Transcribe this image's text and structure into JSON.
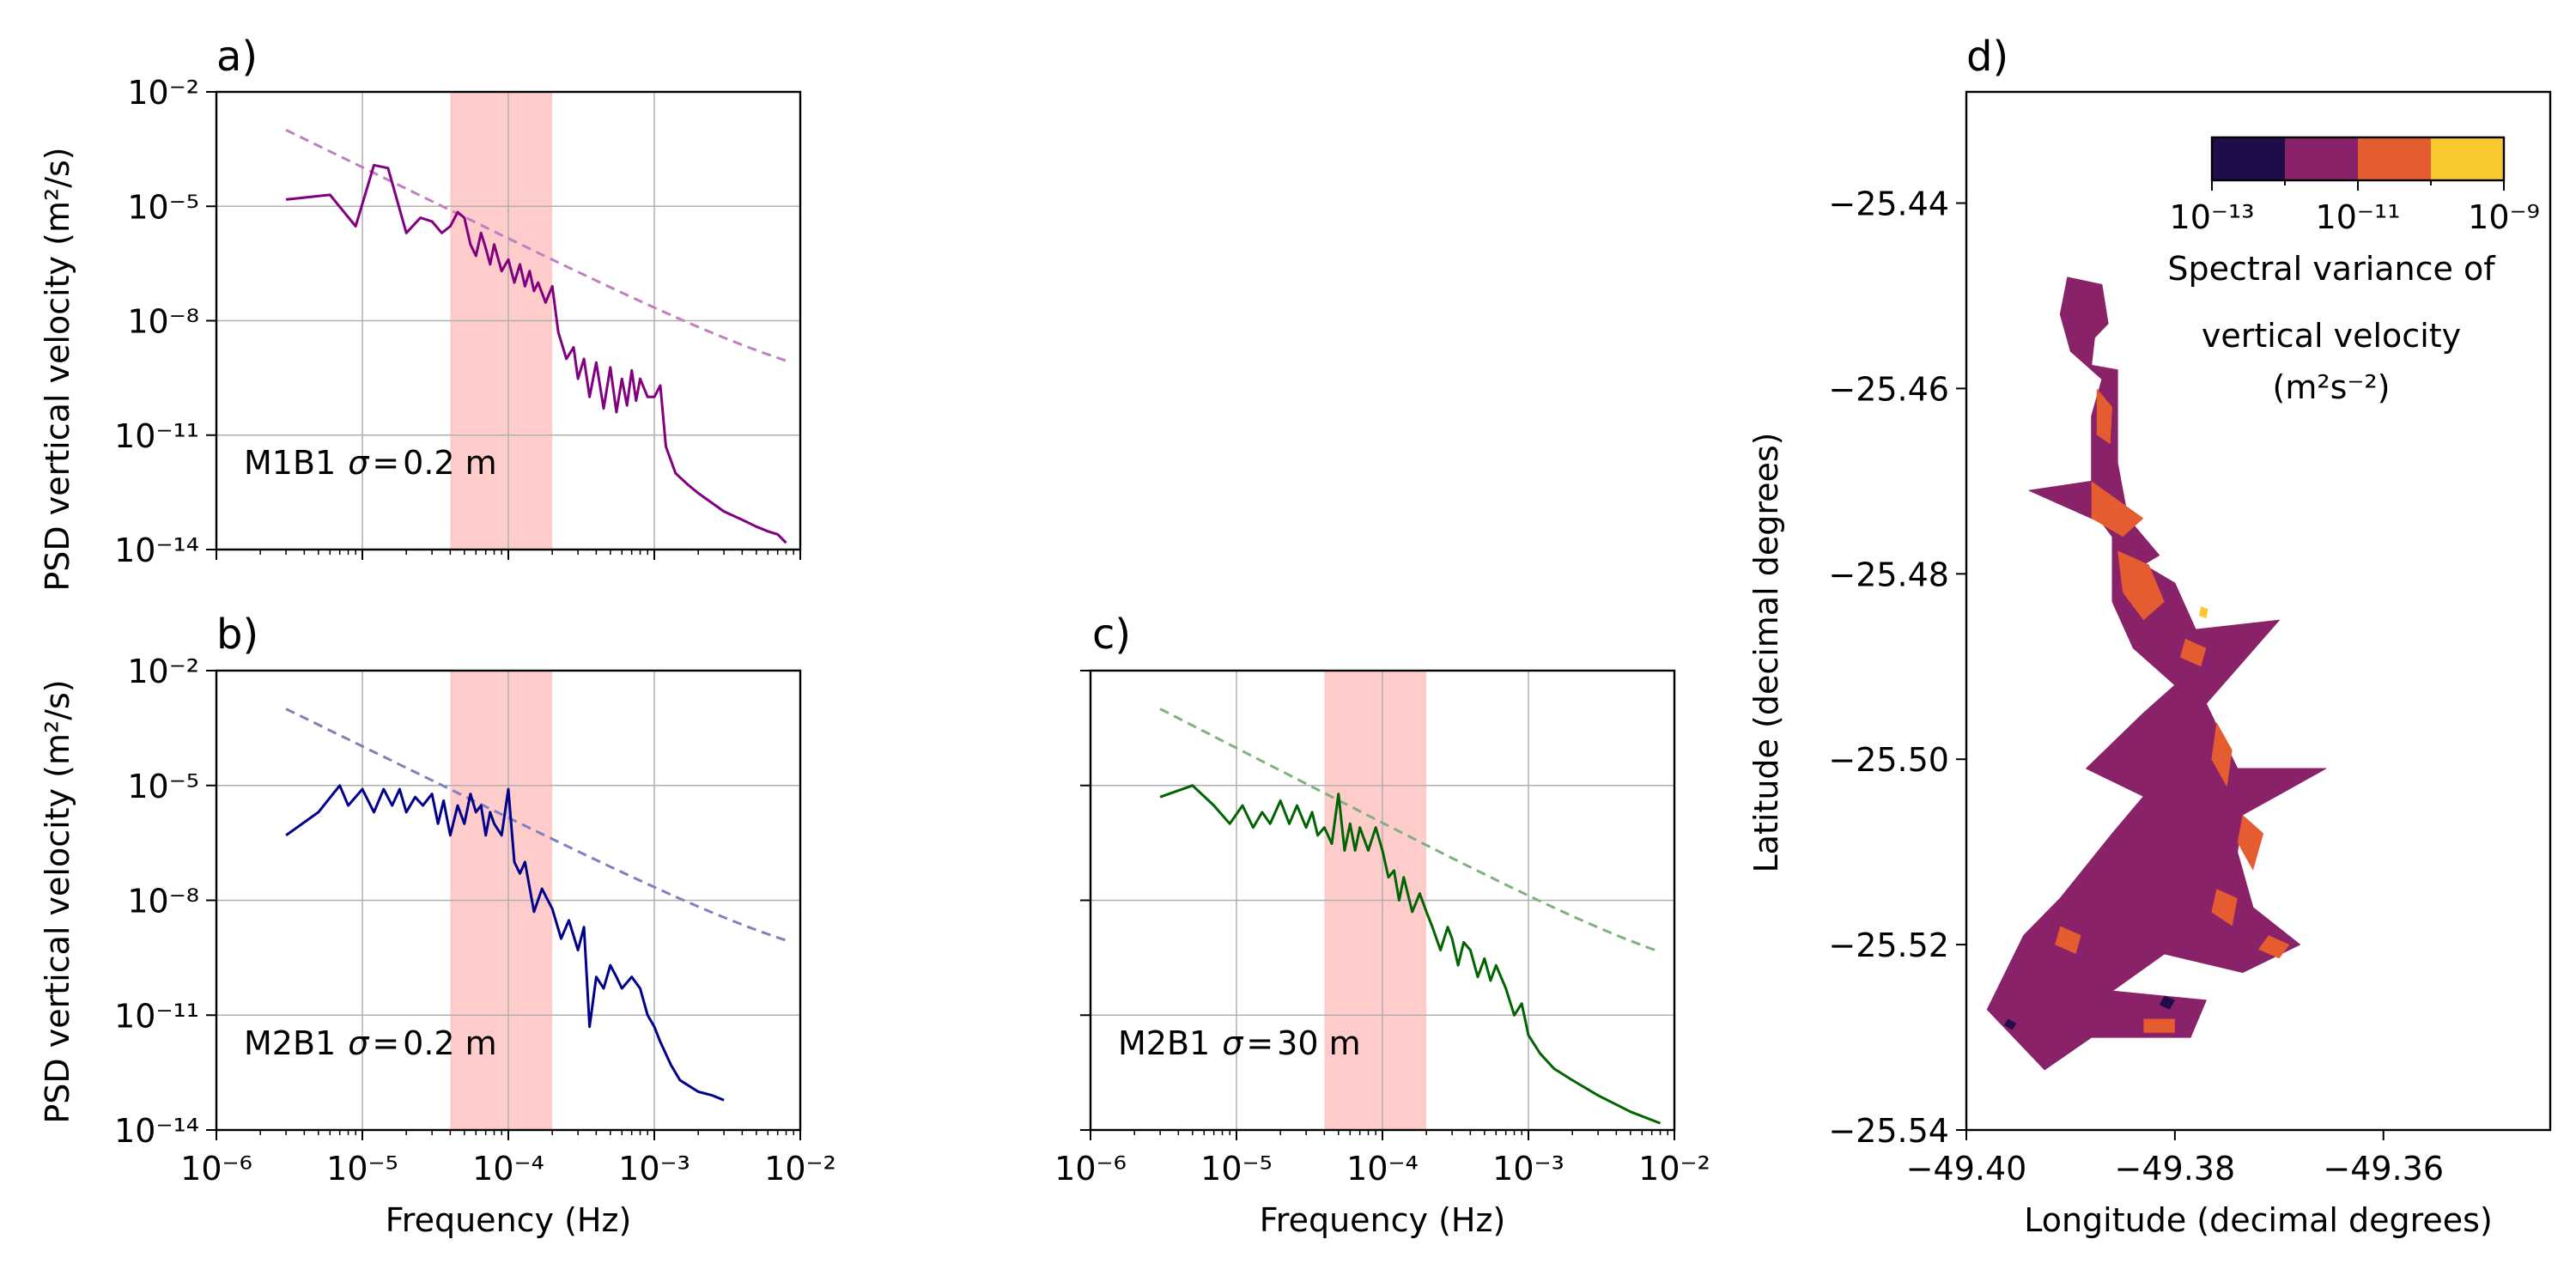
{
  "chart_data": [
    {
      "id": "a",
      "type": "line",
      "panel_label": "a)",
      "annotation_name": "M1B1",
      "annotation_sigma": "0.2 m",
      "xscale": "log",
      "yscale": "log",
      "xlim": [
        1e-06,
        0.01
      ],
      "ylim": [
        1e-14,
        0.01
      ],
      "xlabel": "",
      "ylabel": "PSD vertical velocity (m²/s)",
      "xtick_labels_shown": false,
      "ytick_labels_shown": true,
      "grid": true,
      "shaded_band": [
        4e-05,
        0.0002
      ],
      "shaded_color": "#ffcccc",
      "series_color": "#800080",
      "series": {
        "x": [
          3e-06,
          6e-06,
          9e-06,
          1.2e-05,
          1.5e-05,
          2e-05,
          2.5e-05,
          3e-05,
          3.5e-05,
          4e-05,
          4.5e-05,
          5e-05,
          5.5e-05,
          6e-05,
          6.5e-05,
          7e-05,
          7.5e-05,
          8e-05,
          9e-05,
          0.0001,
          0.00011,
          0.00012,
          0.00013,
          0.00014,
          0.00015,
          0.00016,
          0.00018,
          0.0002,
          0.00022,
          0.00025,
          0.00028,
          0.0003,
          0.00033,
          0.00036,
          0.0004,
          0.00045,
          0.0005,
          0.00055,
          0.0006,
          0.00065,
          0.0007,
          0.00075,
          0.0008,
          0.0009,
          0.001,
          0.0011,
          0.0012,
          0.0014,
          0.0017,
          0.002,
          0.003,
          0.004,
          0.005,
          0.006,
          0.007,
          0.008
        ],
        "y": [
          1.5e-05,
          2e-05,
          3e-06,
          0.00012,
          0.0001,
          2e-06,
          5e-06,
          4e-06,
          2e-06,
          3e-06,
          7e-06,
          5e-06,
          1e-06,
          5e-07,
          2e-06,
          8e-07,
          3e-07,
          1e-06,
          2e-07,
          4e-07,
          1e-07,
          3e-07,
          8e-08,
          2e-07,
          6e-08,
          1e-07,
          3e-08,
          8e-08,
          5e-09,
          1e-09,
          2e-09,
          3e-10,
          1e-09,
          1e-10,
          8e-10,
          5e-11,
          6e-10,
          4e-11,
          3e-10,
          6e-11,
          5e-10,
          8e-11,
          3e-10,
          1e-10,
          1e-10,
          2e-10,
          5e-12,
          1e-12,
          5e-13,
          3e-13,
          1e-13,
          6e-14,
          4e-14,
          3e-14,
          2.5e-14,
          1.5e-14
        ]
      },
      "reference_line": {
        "x_start": 3e-06,
        "x_end": 0.008,
        "y_start": 0.001,
        "y_end": 4e-10,
        "color": "#c080c0"
      }
    },
    {
      "id": "b",
      "type": "line",
      "panel_label": "b)",
      "annotation_name": "M2B1",
      "annotation_sigma": "0.2 m",
      "xscale": "log",
      "yscale": "log",
      "xlim": [
        1e-06,
        0.01
      ],
      "ylim": [
        1e-14,
        0.01
      ],
      "xlabel": "Frequency (Hz)",
      "ylabel": "PSD vertical velocity (m²/s)",
      "xtick_labels_shown": true,
      "ytick_labels_shown": true,
      "grid": true,
      "shaded_band": [
        4e-05,
        0.0002
      ],
      "shaded_color": "#ffcccc",
      "series_color": "#00008b",
      "series": {
        "x": [
          3e-06,
          5e-06,
          7e-06,
          8e-06,
          1e-05,
          1.2e-05,
          1.4e-05,
          1.6e-05,
          1.8e-05,
          2e-05,
          2.3e-05,
          2.6e-05,
          3e-05,
          3.3e-05,
          3.6e-05,
          4e-05,
          4.5e-05,
          5e-05,
          5.5e-05,
          6e-05,
          6.5e-05,
          7e-05,
          7.5e-05,
          8e-05,
          9e-05,
          0.0001,
          0.00011,
          0.00012,
          0.00013,
          0.00015,
          0.00017,
          0.0002,
          0.00023,
          0.00026,
          0.0003,
          0.00033,
          0.00036,
          0.0004,
          0.00045,
          0.0005,
          0.00055,
          0.0006,
          0.0007,
          0.0008,
          0.0009,
          0.001,
          0.0011,
          0.0013,
          0.0015,
          0.002,
          0.0025,
          0.003
        ],
        "y": [
          5e-07,
          2e-06,
          1e-05,
          3e-06,
          8e-06,
          2e-06,
          8e-06,
          3e-06,
          8e-06,
          2e-06,
          5e-06,
          3e-06,
          6e-06,
          1e-06,
          4e-06,
          5e-07,
          3e-06,
          1e-06,
          6e-06,
          2e-06,
          3e-06,
          5e-07,
          2e-06,
          1e-06,
          5e-07,
          8e-06,
          1e-07,
          5e-08,
          1e-07,
          5e-09,
          2e-08,
          6e-09,
          1e-09,
          3e-09,
          5e-10,
          2e-09,
          5e-12,
          1e-10,
          5e-11,
          2e-10,
          1e-10,
          5e-11,
          1e-10,
          5e-11,
          1e-11,
          5e-12,
          2e-12,
          5e-13,
          2e-13,
          1e-13,
          8e-14,
          6e-14
        ]
      },
      "reference_line": {
        "x_start": 3e-06,
        "x_end": 0.008,
        "y_start": 0.001,
        "y_end": 4e-10,
        "color": "#8080c0"
      }
    },
    {
      "id": "c",
      "type": "line",
      "panel_label": "c)",
      "annotation_name": "M2B1",
      "annotation_sigma": "30 m",
      "xscale": "log",
      "yscale": "log",
      "xlim": [
        1e-06,
        0.01
      ],
      "ylim": [
        1e-14,
        0.01
      ],
      "xlabel": "Frequency (Hz)",
      "ylabel": "",
      "xtick_labels_shown": true,
      "ytick_labels_shown": false,
      "grid": true,
      "shaded_band": [
        4e-05,
        0.0002
      ],
      "shaded_color": "#ffcccc",
      "series_color": "#006400",
      "series": {
        "x": [
          3e-06,
          5e-06,
          7e-06,
          9e-06,
          1.1e-05,
          1.3e-05,
          1.5e-05,
          1.7e-05,
          2e-05,
          2.3e-05,
          2.6e-05,
          3e-05,
          3.3e-05,
          3.6e-05,
          4e-05,
          4.5e-05,
          5e-05,
          5.5e-05,
          6e-05,
          6.5e-05,
          7e-05,
          8e-05,
          9e-05,
          0.0001,
          0.00011,
          0.00012,
          0.00013,
          0.00014,
          0.00016,
          0.00018,
          0.0002,
          0.00022,
          0.00025,
          0.00028,
          0.0003,
          0.00033,
          0.00036,
          0.0004,
          0.00045,
          0.0005,
          0.00055,
          0.0006,
          0.0007,
          0.0008,
          0.0009,
          0.001,
          0.0012,
          0.0015,
          0.002,
          0.003,
          0.005,
          0.008
        ],
        "y": [
          5e-06,
          1e-05,
          3e-06,
          1e-06,
          3e-06,
          8e-07,
          2e-06,
          1e-06,
          4e-06,
          1e-06,
          3e-06,
          8e-07,
          2e-06,
          5e-07,
          8e-07,
          3e-07,
          6e-06,
          2e-07,
          1e-06,
          2e-07,
          8e-07,
          2e-07,
          8e-07,
          2e-07,
          4e-08,
          6e-08,
          1e-08,
          4e-08,
          5e-09,
          1.5e-08,
          5e-09,
          2e-09,
          5e-10,
          2e-09,
          1e-09,
          2e-10,
          8e-10,
          5e-10,
          1e-10,
          3e-10,
          8e-11,
          2e-10,
          5e-11,
          1e-11,
          2e-11,
          3e-12,
          1e-12,
          4e-13,
          2e-13,
          8e-14,
          3e-14,
          1.5e-14
        ]
      },
      "reference_line": {
        "x_start": 3e-06,
        "x_end": 0.008,
        "y_start": 0.001,
        "y_end": 2e-10,
        "color": "#80b080"
      }
    },
    {
      "id": "d",
      "type": "heatmap",
      "panel_label": "d)",
      "xlabel": "Longitude (decimal degrees)",
      "ylabel": "Latitude (decimal degrees)",
      "xlim": [
        -49.4,
        -49.344
      ],
      "ylim": [
        -25.54,
        -25.428
      ],
      "x_ticks": [
        -49.4,
        -49.38,
        -49.36
      ],
      "x_tick_labels": [
        "−49.40",
        "−49.38",
        "−49.36"
      ],
      "y_ticks": [
        -25.44,
        -25.46,
        -25.48,
        -25.5,
        -25.52,
        -25.54
      ],
      "y_tick_labels": [
        "−25.44",
        "−25.46",
        "−25.48",
        "−25.50",
        "−25.52",
        "−25.54"
      ],
      "colorbar": {
        "label_line1": "Spectral variance of",
        "label_line2": "vertical velocity",
        "label_line3": "(m²s⁻²)",
        "tick_labels": [
          "10⁻¹³",
          "10⁻¹¹",
          "10⁻⁹"
        ],
        "bins_exponent": [
          -13,
          -12,
          -11,
          -10,
          -9
        ],
        "colors": [
          "#1f0c48",
          "#892269",
          "#e55c30",
          "#fac932"
        ],
        "placement": "top-right"
      },
      "outline": [
        [
          -49.3903,
          -25.448
        ],
        [
          -49.387,
          -25.4488
        ],
        [
          -49.3864,
          -25.453
        ],
        [
          -49.3877,
          -25.4545
        ],
        [
          -49.388,
          -25.4575
        ],
        [
          -49.3855,
          -25.458
        ],
        [
          -49.3855,
          -25.468
        ],
        [
          -49.3845,
          -25.474
        ],
        [
          -49.3815,
          -25.478
        ],
        [
          -49.383,
          -25.479
        ],
        [
          -49.38,
          -25.481
        ],
        [
          -49.378,
          -25.486
        ],
        [
          -49.37,
          -25.485
        ],
        [
          -49.377,
          -25.494
        ],
        [
          -49.374,
          -25.501
        ],
        [
          -49.3655,
          -25.501
        ],
        [
          -49.3735,
          -25.506
        ],
        [
          -49.374,
          -25.51
        ],
        [
          -49.3725,
          -25.516
        ],
        [
          -49.368,
          -25.52
        ],
        [
          -49.3735,
          -25.523
        ],
        [
          -49.381,
          -25.521
        ],
        [
          -49.386,
          -25.525
        ],
        [
          -49.377,
          -25.526
        ],
        [
          -49.3785,
          -25.53
        ],
        [
          -49.388,
          -25.53
        ],
        [
          -49.3925,
          -25.5335
        ],
        [
          -49.398,
          -25.527
        ],
        [
          -49.3945,
          -25.519
        ],
        [
          -49.391,
          -25.515
        ],
        [
          -49.386,
          -25.508
        ],
        [
          -49.383,
          -25.504
        ],
        [
          -49.3885,
          -25.501
        ],
        [
          -49.383,
          -25.495
        ],
        [
          -49.38,
          -25.492
        ],
        [
          -49.384,
          -25.488
        ],
        [
          -49.386,
          -25.483
        ],
        [
          -49.386,
          -25.476
        ],
        [
          -49.387,
          -25.4745
        ],
        [
          -49.394,
          -25.471
        ],
        [
          -49.388,
          -25.47
        ],
        [
          -49.388,
          -25.463
        ],
        [
          -49.387,
          -25.459
        ],
        [
          -49.39,
          -25.456
        ],
        [
          -49.391,
          -25.452
        ]
      ],
      "patches": [
        {
          "level": 2,
          "pts": [
            [
              -49.3875,
              -25.46
            ],
            [
              -49.386,
              -25.462
            ],
            [
              -49.3862,
              -25.466
            ],
            [
              -49.3875,
              -25.465
            ]
          ]
        },
        {
          "level": 2,
          "pts": [
            [
              -49.388,
              -25.47
            ],
            [
              -49.3855,
              -25.472
            ],
            [
              -49.383,
              -25.474
            ],
            [
              -49.385,
              -25.476
            ],
            [
              -49.388,
              -25.474
            ]
          ]
        },
        {
          "level": 2,
          "pts": [
            [
              -49.3855,
              -25.4775
            ],
            [
              -49.3825,
              -25.479
            ],
            [
              -49.381,
              -25.483
            ],
            [
              -49.383,
              -25.485
            ],
            [
              -49.385,
              -25.482
            ]
          ]
        },
        {
          "level": 2,
          "pts": [
            [
              -49.379,
              -25.487
            ],
            [
              -49.377,
              -25.488
            ],
            [
              -49.3775,
              -25.49
            ],
            [
              -49.3795,
              -25.489
            ]
          ]
        },
        {
          "level": 2,
          "pts": [
            [
              -49.376,
              -25.496
            ],
            [
              -49.3745,
              -25.499
            ],
            [
              -49.375,
              -25.503
            ],
            [
              -49.3765,
              -25.5
            ]
          ]
        },
        {
          "level": 2,
          "pts": [
            [
              -49.3735,
              -25.506
            ],
            [
              -49.3715,
              -25.508
            ],
            [
              -49.3725,
              -25.512
            ],
            [
              -49.374,
              -25.509
            ]
          ]
        },
        {
          "level": 2,
          "pts": [
            [
              -49.376,
              -25.514
            ],
            [
              -49.374,
              -25.515
            ],
            [
              -49.3745,
              -25.518
            ],
            [
              -49.3765,
              -25.5165
            ]
          ]
        },
        {
          "level": 2,
          "pts": [
            [
              -49.371,
              -25.519
            ],
            [
              -49.369,
              -25.52
            ],
            [
              -49.37,
              -25.5215
            ],
            [
              -49.372,
              -25.5205
            ]
          ]
        },
        {
          "level": 2,
          "pts": [
            [
              -49.391,
              -25.518
            ],
            [
              -49.389,
              -25.519
            ],
            [
              -49.3895,
              -25.521
            ],
            [
              -49.3915,
              -25.52
            ]
          ]
        },
        {
          "level": 2,
          "pts": [
            [
              -49.383,
              -25.528
            ],
            [
              -49.38,
              -25.528
            ],
            [
              -49.38,
              -25.5295
            ],
            [
              -49.383,
              -25.5295
            ]
          ]
        },
        {
          "level": 0,
          "pts": [
            [
              -49.381,
              -25.5255
            ],
            [
              -49.38,
              -25.526
            ],
            [
              -49.3805,
              -25.527
            ],
            [
              -49.3815,
              -25.5265
            ]
          ]
        },
        {
          "level": 0,
          "pts": [
            [
              -49.396,
              -25.528
            ],
            [
              -49.3952,
              -25.5285
            ],
            [
              -49.3956,
              -25.5292
            ],
            [
              -49.3964,
              -25.5287
            ]
          ]
        },
        {
          "level": 3,
          "pts": [
            [
              -49.3775,
              -25.4835
            ],
            [
              -49.3768,
              -25.4838
            ],
            [
              -49.377,
              -25.4848
            ],
            [
              -49.3777,
              -25.4845
            ]
          ]
        }
      ]
    }
  ]
}
